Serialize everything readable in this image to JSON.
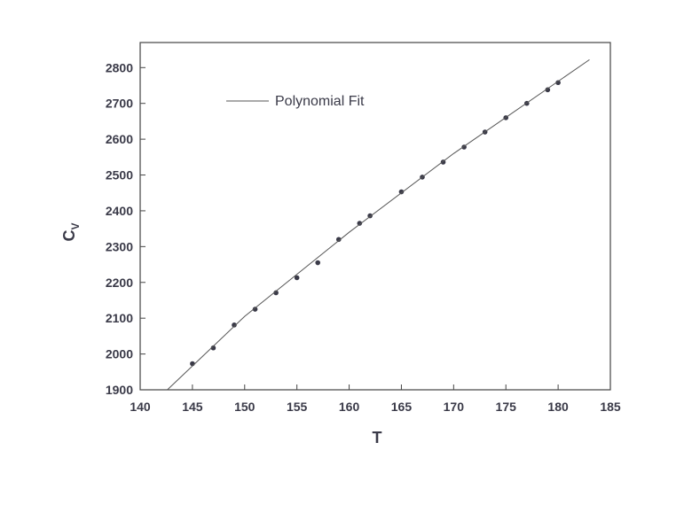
{
  "chart_data": {
    "type": "scatter",
    "x_label": "T",
    "y_label": "C",
    "y_label_subscript": "V",
    "xlim": [
      140,
      185
    ],
    "xticks": [
      140,
      145,
      150,
      155,
      160,
      165,
      170,
      175,
      180,
      185
    ],
    "ylim": [
      1900,
      2870
    ],
    "yticks": [
      1900,
      2000,
      2100,
      2200,
      2300,
      2400,
      2500,
      2600,
      2700,
      2800
    ],
    "legend": "upper left",
    "series": [
      {
        "mode": "markers",
        "color": "#3a3a48",
        "x": [
          145,
          147,
          149,
          151,
          153,
          155,
          157,
          159,
          161,
          162,
          165,
          167,
          169,
          171,
          173,
          175,
          177,
          179,
          180
        ],
        "values": [
          1973,
          2017,
          2081,
          2125,
          2171,
          2213,
          2255,
          2320,
          2365,
          2386,
          2453,
          2494,
          2536,
          2578,
          2620,
          2660,
          2700,
          2738,
          2758
        ]
      },
      {
        "name": "Polynomial Fit",
        "mode": "line",
        "color": "#555555",
        "x": [
          142.6,
          150,
          160,
          170,
          183
        ],
        "values": [
          1900,
          2105,
          2340,
          2560,
          2822
        ]
      }
    ]
  }
}
